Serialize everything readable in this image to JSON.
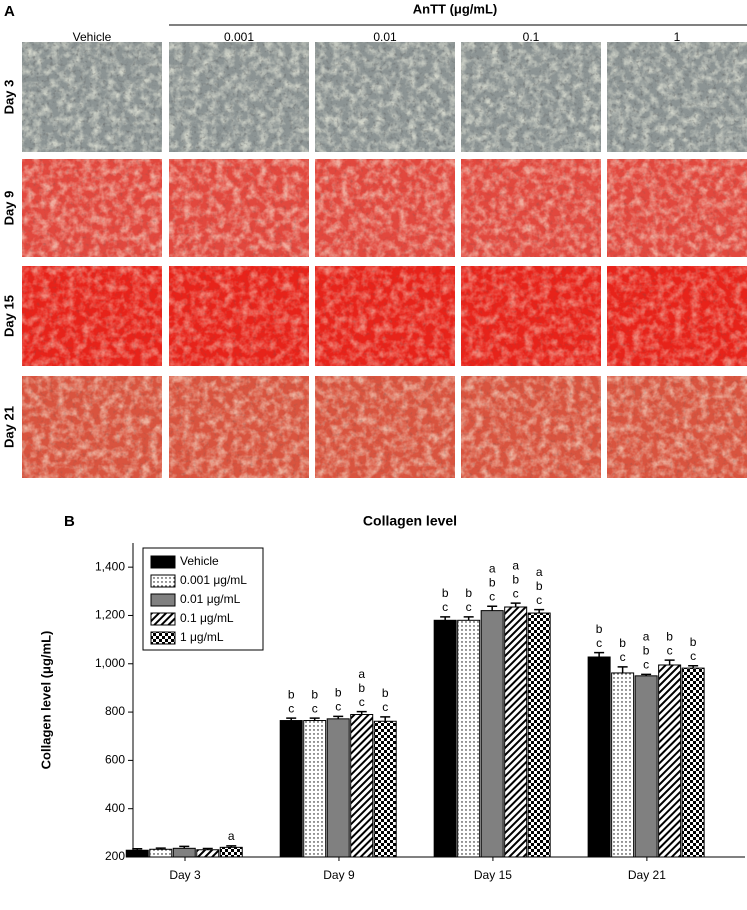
{
  "panel_a": {
    "label": "A",
    "header": "AnTT (μg/mL)",
    "columns": [
      "Vehicle",
      "0.001",
      "0.01",
      "0.1",
      "1"
    ],
    "rows": [
      "Day 3",
      "Day 9",
      "Day 15",
      "Day 21"
    ]
  },
  "chart_data": {
    "type": "bar",
    "panel_label": "B",
    "title": "Collagen level",
    "y_label": "Collagen level (μg/mL)",
    "categories": [
      "Day 3",
      "Day 9",
      "Day 15",
      "Day 21"
    ],
    "ylim": [
      200,
      1500
    ],
    "yticks": [
      200,
      400,
      600,
      800,
      {
        "value": 1000,
        "label": "1,000"
      },
      {
        "value": 1200,
        "label": "1,200"
      },
      {
        "value": 1400,
        "label": "1,400"
      }
    ],
    "legend": "upper left",
    "series": [
      {
        "name": "Vehicle",
        "color": "#000000",
        "pattern": "solid",
        "values": [
          228,
          765,
          1180,
          1028
        ],
        "errors": [
          6,
          10,
          14,
          18
        ],
        "letters": [
          null,
          [
            "b",
            "c"
          ],
          [
            "b",
            "c"
          ],
          [
            "b",
            "c"
          ]
        ]
      },
      {
        "name": "0.001 μg/mL",
        "color": "#ffffff",
        "pattern": "dots",
        "values": [
          232,
          765,
          1180,
          962
        ],
        "errors": [
          5,
          10,
          14,
          25
        ],
        "letters": [
          null,
          [
            "b",
            "c"
          ],
          [
            "b",
            "c"
          ],
          [
            "b",
            "c"
          ]
        ]
      },
      {
        "name": "0.01 μg/mL",
        "color": "#808080",
        "pattern": "solid",
        "values": [
          236,
          772,
          1220,
          950
        ],
        "errors": [
          8,
          10,
          18,
          6
        ],
        "letters": [
          null,
          [
            "b",
            "c"
          ],
          [
            "a",
            "b",
            "c"
          ],
          [
            "a",
            "b",
            "c"
          ]
        ]
      },
      {
        "name": "0.1 μg/mL",
        "color": "#ffffff",
        "pattern": "hatch",
        "values": [
          230,
          790,
          1235,
          995
        ],
        "errors": [
          5,
          12,
          16,
          20
        ],
        "letters": [
          null,
          [
            "a",
            "b",
            "c"
          ],
          [
            "a",
            "b",
            "c"
          ],
          [
            "b",
            "c"
          ]
        ]
      },
      {
        "name": "1 μg/mL",
        "color": "#000000",
        "pattern": "checker",
        "values": [
          240,
          762,
          1210,
          982
        ],
        "errors": [
          6,
          18,
          14,
          10
        ],
        "letters": [
          [
            "a"
          ],
          [
            "b",
            "c"
          ],
          [
            "a",
            "b",
            "c"
          ],
          [
            "b",
            "c"
          ]
        ]
      }
    ]
  }
}
